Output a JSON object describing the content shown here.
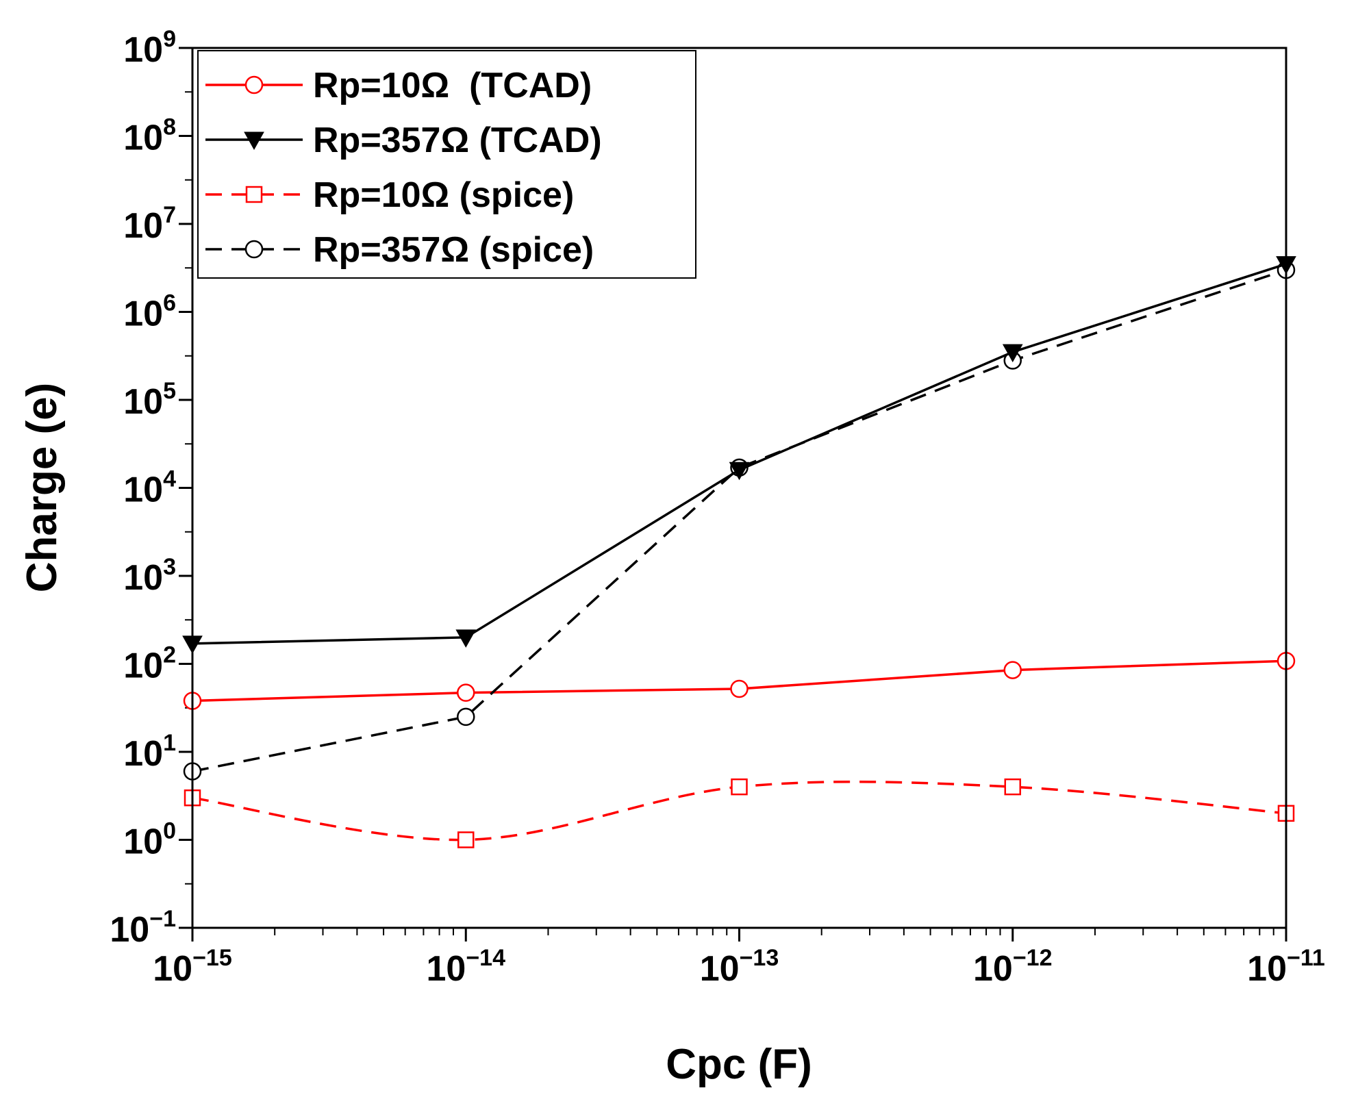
{
  "chart_data": {
    "type": "line",
    "title": "",
    "xlabel": "Cpc (F)",
    "ylabel": "Charge (e)",
    "xscale": "log",
    "yscale": "log",
    "xlim": [
      1e-15,
      1e-11
    ],
    "ylim": [
      0.1,
      1000000000.0
    ],
    "x_ticks": [
      {
        "base": "10",
        "exp": "−15"
      },
      {
        "base": "10",
        "exp": "−14"
      },
      {
        "base": "10",
        "exp": "−13"
      },
      {
        "base": "10",
        "exp": "−12"
      },
      {
        "base": "10",
        "exp": "−11"
      }
    ],
    "y_ticks": [
      {
        "base": "10",
        "exp": "−1"
      },
      {
        "base": "10",
        "exp": "0"
      },
      {
        "base": "10",
        "exp": "1"
      },
      {
        "base": "10",
        "exp": "2"
      },
      {
        "base": "10",
        "exp": "3"
      },
      {
        "base": "10",
        "exp": "4"
      },
      {
        "base": "10",
        "exp": "5"
      },
      {
        "base": "10",
        "exp": "6"
      },
      {
        "base": "10",
        "exp": "7"
      },
      {
        "base": "10",
        "exp": "8"
      },
      {
        "base": "10",
        "exp": "9"
      }
    ],
    "x": [
      1e-15,
      1e-14,
      1e-13,
      1e-12,
      1e-11
    ],
    "legend_position": "top-left",
    "series": [
      {
        "name": "Rp=10Ω  (TCAD)",
        "color": "#ff0000",
        "line": "solid",
        "marker": "open-circle",
        "smooth": false,
        "values": [
          38,
          47,
          52,
          85,
          108
        ]
      },
      {
        "name": "Rp=357Ω (TCAD)",
        "color": "#000000",
        "line": "solid",
        "marker": "filled-down-triangle",
        "smooth": false,
        "values": [
          170,
          200,
          16000,
          350000,
          3500000
        ]
      },
      {
        "name": "Rp=10Ω (spice)",
        "color": "#ff0000",
        "line": "dashed",
        "marker": "open-square",
        "smooth": true,
        "values": [
          3,
          1,
          4,
          4,
          2
        ]
      },
      {
        "name": "Rp=357Ω (spice)",
        "color": "#000000",
        "line": "dashed",
        "marker": "open-circle",
        "smooth": false,
        "values": [
          6,
          25,
          17000,
          280000,
          3000000
        ]
      }
    ]
  }
}
